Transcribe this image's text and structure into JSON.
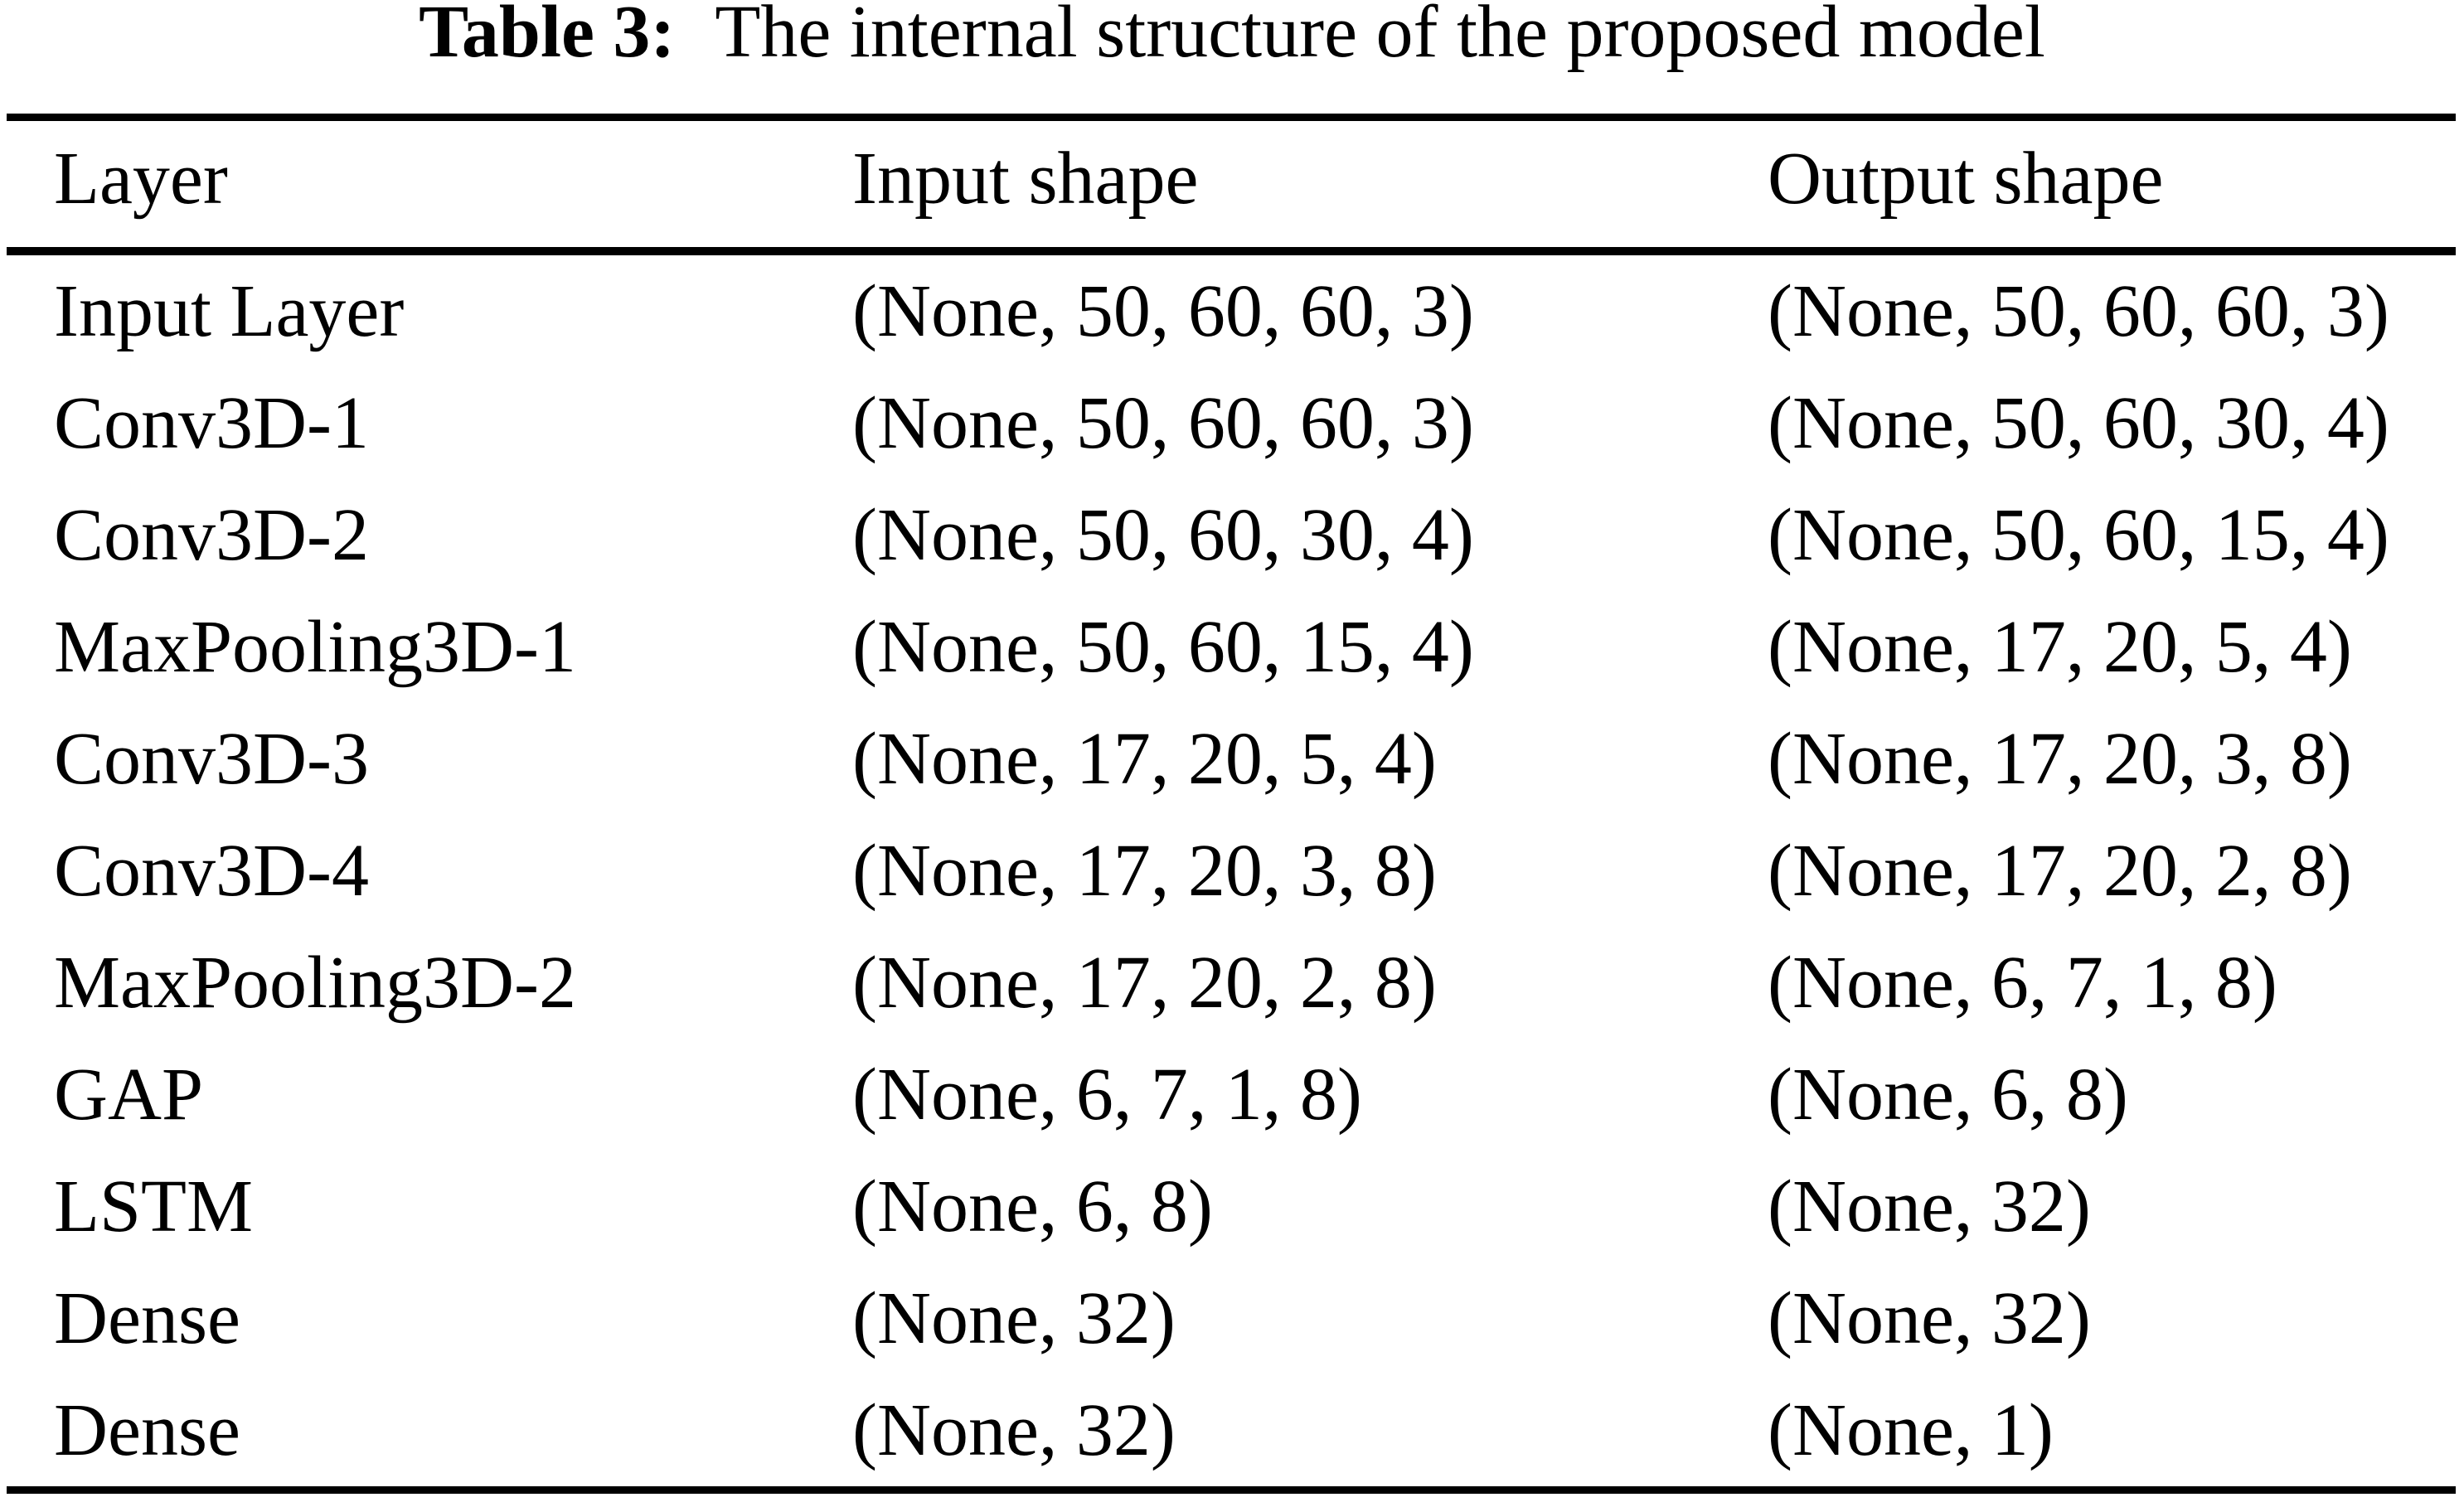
{
  "caption": {
    "label": "Table 3:",
    "text": "The internal structure of the proposed model"
  },
  "table": {
    "columns": [
      "Layer",
      "Input shape",
      "Output shape"
    ],
    "rows": [
      {
        "layer": "Input Layer",
        "input_shape": "(None, 50, 60, 60, 3)",
        "output_shape": "(None, 50, 60, 60, 3)"
      },
      {
        "layer": "Conv3D-1",
        "input_shape": "(None, 50, 60, 60, 3)",
        "output_shape": "(None, 50, 60, 30, 4)"
      },
      {
        "layer": "Conv3D-2",
        "input_shape": "(None, 50, 60, 30, 4)",
        "output_shape": "(None, 50, 60, 15, 4)"
      },
      {
        "layer": "MaxPooling3D-1",
        "input_shape": "(None, 50, 60, 15, 4)",
        "output_shape": "(None, 17, 20, 5, 4)"
      },
      {
        "layer": "Conv3D-3",
        "input_shape": "(None, 17, 20, 5, 4)",
        "output_shape": "(None, 17, 20, 3, 8)"
      },
      {
        "layer": "Conv3D-4",
        "input_shape": "(None, 17, 20, 3, 8)",
        "output_shape": "(None, 17, 20, 2, 8)"
      },
      {
        "layer": "MaxPooling3D-2",
        "input_shape": "(None, 17, 20, 2, 8)",
        "output_shape": "(None, 6, 7, 1, 8)"
      },
      {
        "layer": "GAP",
        "input_shape": "(None, 6, 7, 1, 8)",
        "output_shape": "(None, 6, 8)"
      },
      {
        "layer": "LSTM",
        "input_shape": "(None, 6, 8)",
        "output_shape": "(None, 32)"
      },
      {
        "layer": "Dense",
        "input_shape": "(None, 32)",
        "output_shape": "(None, 32)"
      },
      {
        "layer": "Dense",
        "input_shape": "(None, 32)",
        "output_shape": "(None, 1)"
      }
    ]
  },
  "colors": {
    "text": "#000000",
    "background": "#ffffff",
    "rule": "#000000"
  }
}
